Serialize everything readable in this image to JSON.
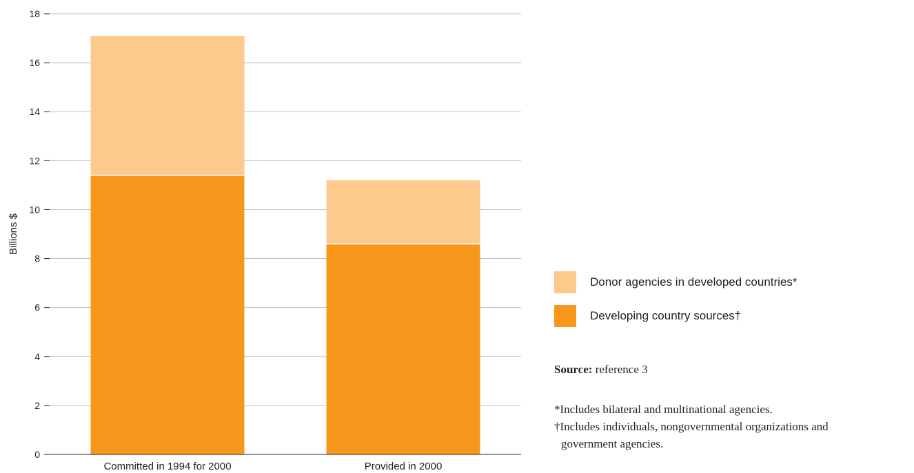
{
  "chart_data": {
    "type": "bar",
    "stacked": true,
    "categories": [
      "Committed in 1994 for 2000",
      "Provided in 2000"
    ],
    "series": [
      {
        "name": "Developing country sources†",
        "values": [
          11.4,
          8.6
        ],
        "color": "#f7981d"
      },
      {
        "name": "Donor agencies in developed countries*",
        "values": [
          5.7,
          2.6
        ],
        "color": "#fdc98c"
      }
    ],
    "ylabel": "Billions $",
    "ylim": [
      0,
      18
    ],
    "yticks": [
      0,
      2,
      4,
      6,
      8,
      10,
      12,
      14,
      16,
      18
    ],
    "grid": true,
    "legend_position": "right"
  },
  "legend": {
    "items": [
      {
        "label": "Donor agencies in developed countries*",
        "color": "#fdc98c"
      },
      {
        "label": "Developing country sources†",
        "color": "#f7981d"
      }
    ]
  },
  "source": {
    "label": "Source:",
    "text": " reference 3"
  },
  "notes": [
    "*Includes bilateral and multinational agencies.",
    "†Includes individuals, nongovernmental organizations and",
    "government agencies."
  ]
}
